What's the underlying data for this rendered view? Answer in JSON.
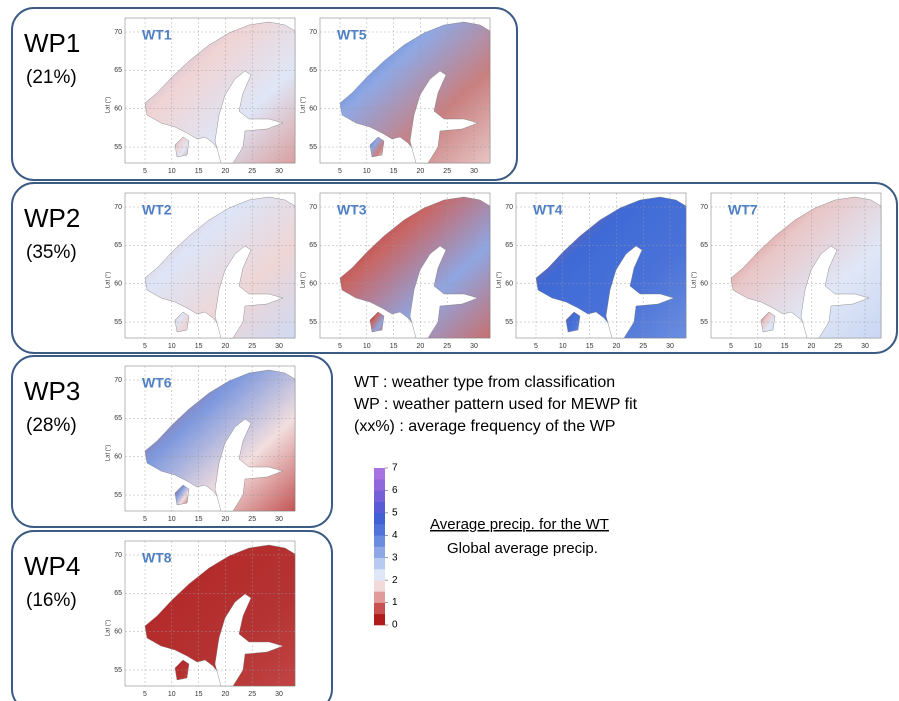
{
  "groups": [
    {
      "label": "WP1",
      "frequency": "(21%)",
      "maps": [
        "WT1",
        "WT5"
      ]
    },
    {
      "label": "WP2",
      "frequency": "(35%)",
      "maps": [
        "WT2",
        "WT3",
        "WT4",
        "WT7"
      ]
    },
    {
      "label": "WP3",
      "frequency": "(28%)",
      "maps": [
        "WT6"
      ]
    },
    {
      "label": "WP4",
      "frequency": "(16%)",
      "maps": [
        "WT8"
      ]
    }
  ],
  "map_axes": {
    "lat_label": "Lat (°)",
    "lat_ticks": [
      70,
      65,
      60,
      55
    ],
    "lon_ticks": [
      5,
      10,
      15,
      20,
      25,
      30
    ]
  },
  "legend": {
    "lines": [
      "WT :  weather type from classification",
      "WP : weather pattern used for MEWP fit",
      "(xx%) : average frequency of the WP"
    ],
    "colorbar_ticks": [
      0,
      1,
      2,
      3,
      4,
      5,
      6,
      7
    ],
    "fraction_numerator": "Average precip. for the WT",
    "fraction_denominator": "Global average  precip."
  }
}
